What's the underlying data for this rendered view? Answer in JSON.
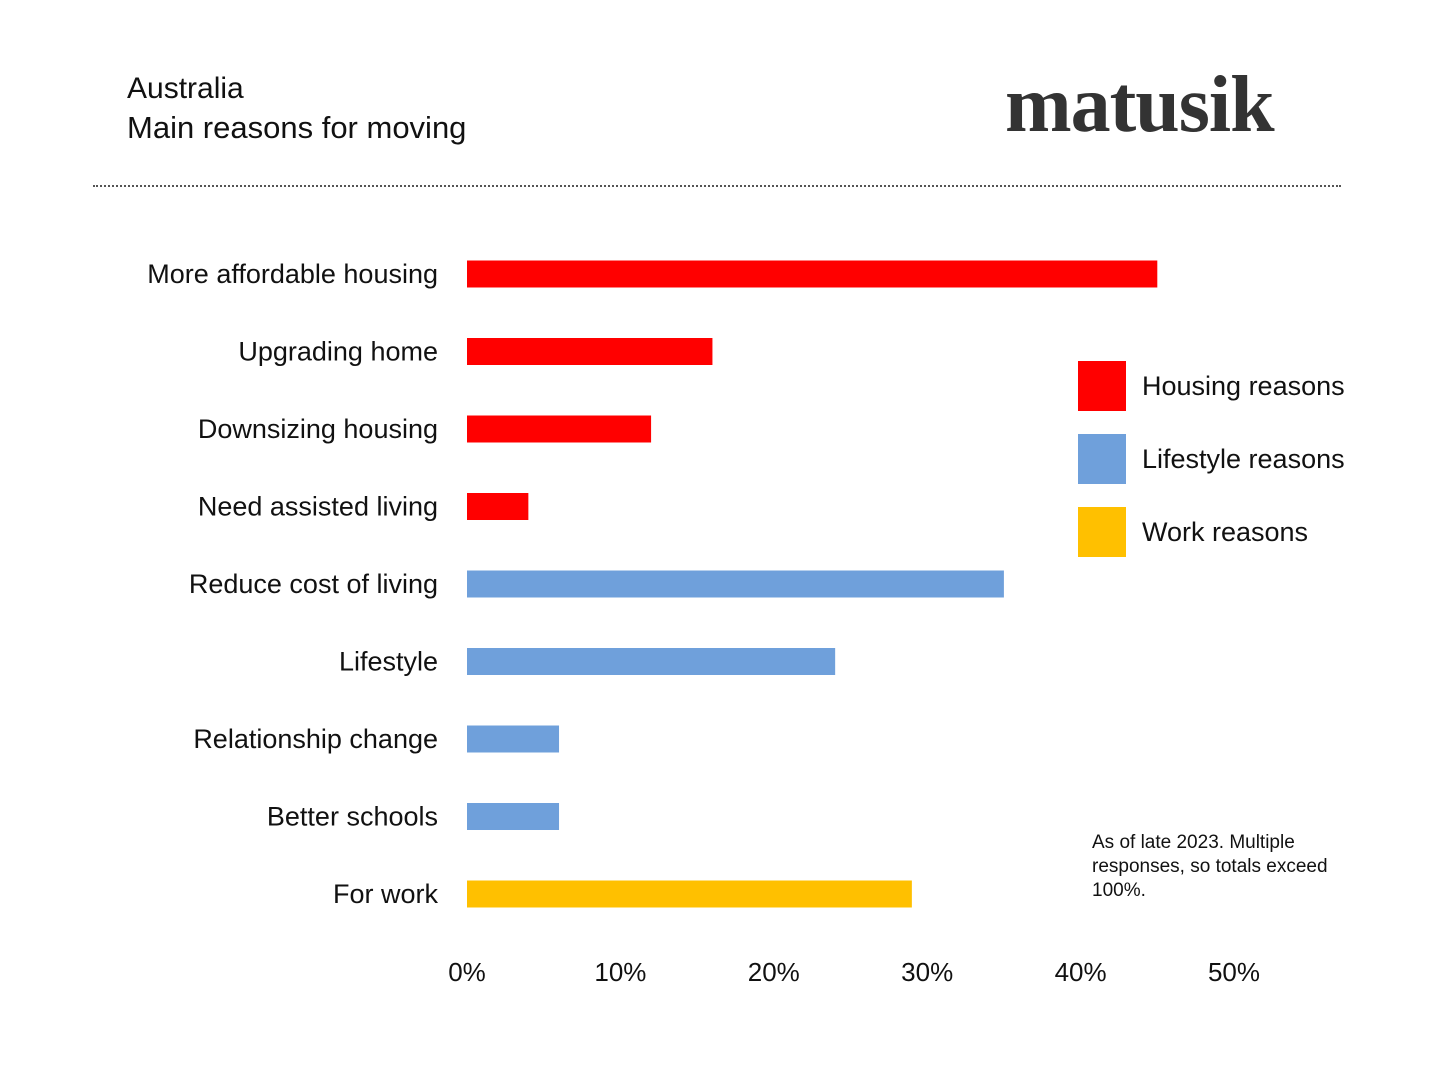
{
  "header": {
    "country": "Australia",
    "subtitle": "Main reasons for moving",
    "logo": "matusik"
  },
  "note": "As of late 2023. Multiple responses, so totals exceed 100%.",
  "colors": {
    "housing": "#ff0000",
    "lifestyle": "#6fa0db",
    "work": "#ffc000"
  },
  "chart_data": {
    "type": "bar",
    "orientation": "horizontal",
    "categories": [
      "More affordable housing",
      "Upgrading home",
      "Downsizing housing",
      "Need assisted living",
      "Reduce cost of living",
      "Lifestyle",
      "Relationship change",
      "Better schools",
      "For work"
    ],
    "values": [
      45,
      16,
      12,
      4,
      35,
      24,
      6,
      6,
      29
    ],
    "groups": [
      "housing",
      "housing",
      "housing",
      "housing",
      "lifestyle",
      "lifestyle",
      "lifestyle",
      "lifestyle",
      "work"
    ],
    "legend": [
      {
        "key": "housing",
        "label": "Housing reasons"
      },
      {
        "key": "lifestyle",
        "label": "Lifestyle reasons"
      },
      {
        "key": "work",
        "label": "Work reasons"
      }
    ],
    "legend_position": "right",
    "xlim": [
      0,
      50
    ],
    "xticks": [
      0,
      10,
      20,
      30,
      40,
      50
    ],
    "xtick_labels": [
      "0%",
      "10%",
      "20%",
      "30%",
      "40%",
      "50%"
    ],
    "grid": false
  }
}
